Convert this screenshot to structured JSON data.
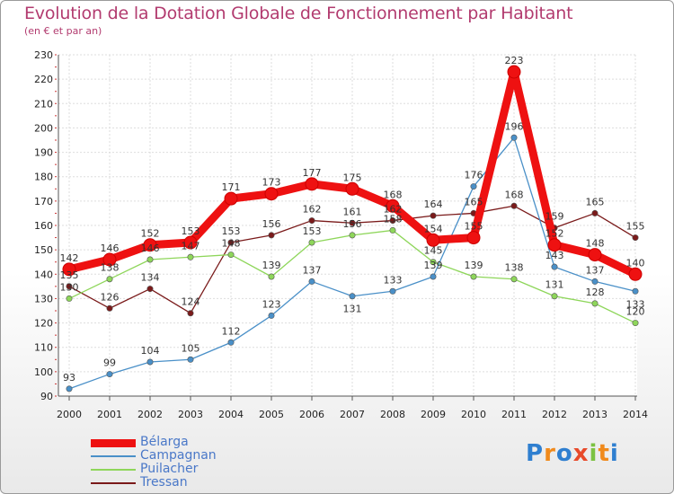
{
  "title": "Evolution de la Dotation Globale de Fonctionnement par Habitant",
  "subtitle": "(en € et par an)",
  "chart_data": {
    "type": "line",
    "title": "Evolution de la Dotation Globale de Fonctionnement par Habitant",
    "subtitle": "(en € et par an)",
    "xlabel": "",
    "ylabel": "",
    "x": [
      "2000",
      "2001",
      "2002",
      "2003",
      "2004",
      "2005",
      "2006",
      "2007",
      "2008",
      "2009",
      "2010",
      "2011",
      "2012",
      "2013",
      "2014"
    ],
    "ylim": [
      90,
      230
    ],
    "yticks": [
      90,
      100,
      110,
      120,
      130,
      140,
      150,
      160,
      170,
      180,
      190,
      200,
      210,
      220,
      230
    ],
    "grid": true,
    "legend_position": "bottom-left",
    "series": [
      {
        "name": "Bélarga",
        "color": "#ee1111",
        "values": [
          142,
          146,
          152,
          153,
          171,
          173,
          177,
          175,
          168,
          154,
          155,
          223,
          152,
          148,
          140
        ]
      },
      {
        "name": "Campagnan",
        "color": "#4a90c8",
        "values": [
          93,
          99,
          104,
          105,
          112,
          123,
          137,
          131,
          133,
          139,
          176,
          196,
          143,
          137,
          133
        ]
      },
      {
        "name": "Puilacher",
        "color": "#8ed65a",
        "values": [
          130,
          138,
          146,
          147,
          148,
          139,
          153,
          156,
          158,
          145,
          139,
          138,
          131,
          128,
          120
        ]
      },
      {
        "name": "Tressan",
        "color": "#7a1a1a",
        "values": [
          135,
          126,
          134,
          124,
          153,
          156,
          162,
          161,
          162,
          164,
          165,
          168,
          159,
          165,
          155
        ]
      }
    ]
  },
  "logo": {
    "text": [
      "P",
      "r",
      "o",
      "x",
      "i",
      "t",
      "i"
    ],
    "colors": [
      "#2f7fd0",
      "#f08a1c",
      "#2f7fd0",
      "#e84a2a",
      "#7cc242",
      "#f08a1c",
      "#2f7fd0"
    ]
  }
}
